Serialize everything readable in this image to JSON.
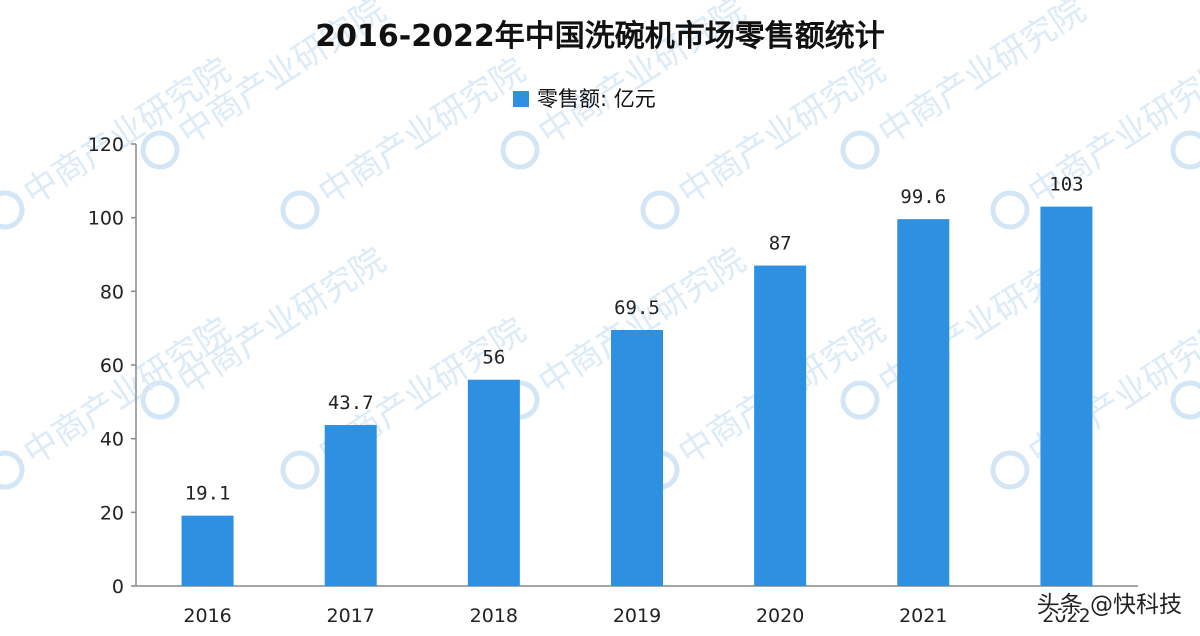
{
  "chart_data": {
    "type": "bar",
    "title": "2016-2022年中国洗碗机市场零售额统计",
    "legend_label": "零售额: 亿元",
    "legend_position": "top-center",
    "categories": [
      "2016",
      "2017",
      "2018",
      "2019",
      "2020",
      "2021",
      "2022"
    ],
    "values": [
      19.1,
      43.7,
      56,
      69.5,
      87,
      99.6,
      103
    ],
    "data_labels": [
      "19.1",
      "43.7",
      "56",
      "69.5",
      "87",
      "99.6",
      "103"
    ],
    "y_ticks": [
      "0",
      "20",
      "40",
      "60",
      "80",
      "100",
      "120"
    ],
    "ylim": [
      0,
      120
    ],
    "grid": false,
    "bar_color": "#2E90E0"
  },
  "watermark": {
    "text": "中商产业研究院"
  },
  "footer": {
    "credit": "头条 @快科技"
  }
}
